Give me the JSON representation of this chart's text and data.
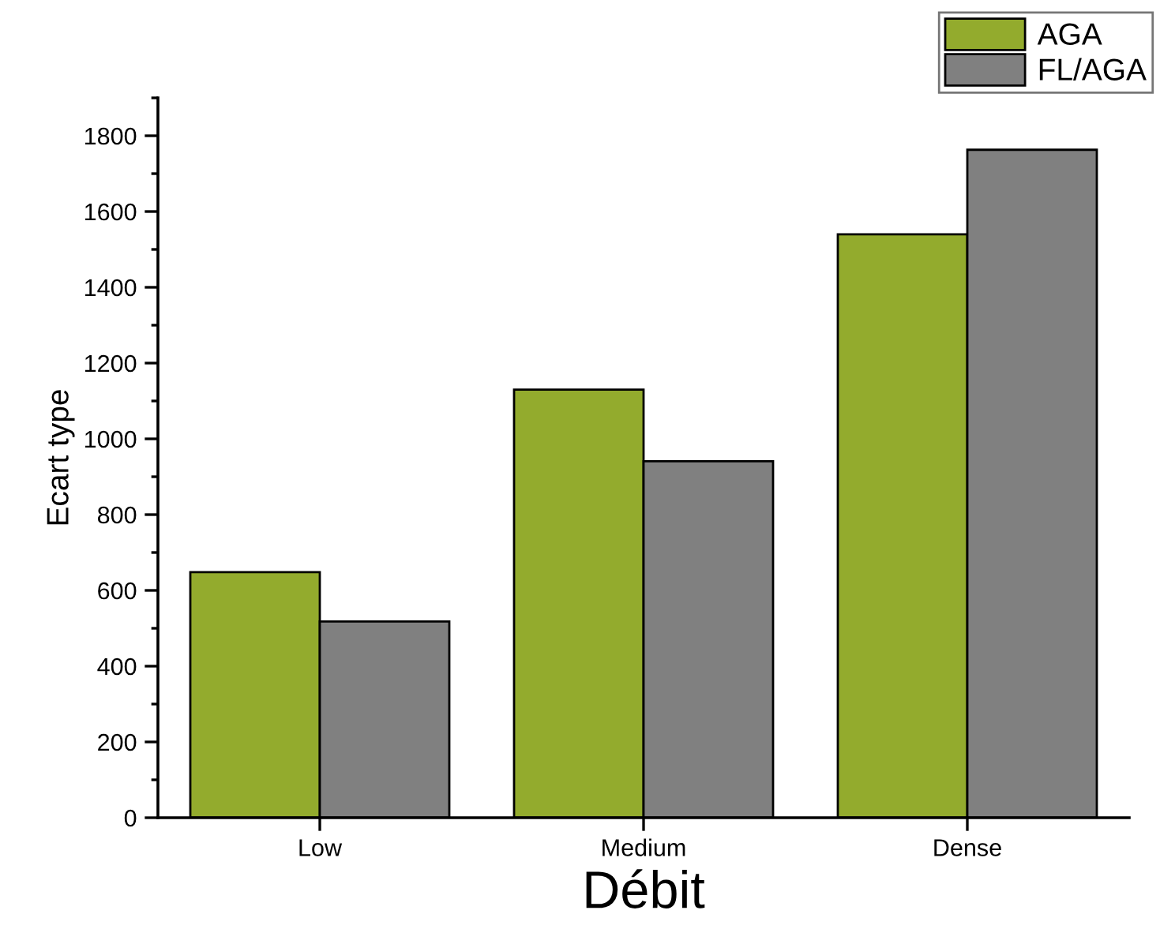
{
  "chart_data": {
    "type": "bar",
    "xlabel": "Débit",
    "ylabel": "Ecart type",
    "categories": [
      "Low",
      "Medium",
      "Dense"
    ],
    "series": [
      {
        "name": "AGA",
        "color": "#93ab2d",
        "values": [
          648,
          1130,
          1540
        ]
      },
      {
        "name": "FL/AGA",
        "color": "#808080",
        "values": [
          518,
          941,
          1763
        ]
      }
    ],
    "ylim": [
      0,
      1900
    ],
    "yticks": [
      0,
      200,
      400,
      600,
      800,
      1000,
      1200,
      1400,
      1600,
      1800
    ],
    "grid": false,
    "legend": "top right"
  }
}
